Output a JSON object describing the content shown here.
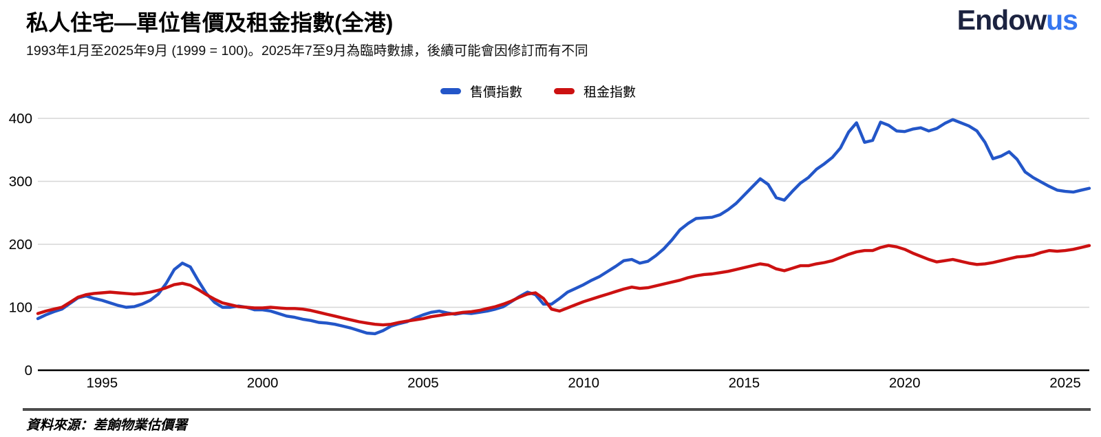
{
  "header": {
    "title": "私人住宅—單位售價及租金指數(全港)",
    "subtitle": "1993年1月至2025年9月 (1999 = 100)。2025年7至9月為臨時數據，後續可能會因修訂而有不同",
    "logo": {
      "part1": "Endow",
      "part2": "us"
    }
  },
  "colors": {
    "price_line": "#2356c8",
    "rent_line": "#cc1111",
    "logo_navy": "#1c2340",
    "logo_blue": "#3576f0",
    "gridline": "#d6d6d6",
    "baseline": "#000000",
    "footer_rule": "#4d4d4d"
  },
  "legend": [
    {
      "label": "售價指數",
      "color": "#2356c8"
    },
    {
      "label": "租金指數",
      "color": "#cc1111"
    }
  ],
  "footer": {
    "source_label": "資料來源：差餉物業估價署"
  },
  "chart_data": {
    "type": "line",
    "title": "私人住宅—單位售價及租金指數(全港)",
    "subtitle": "1993年1月至2025年9月 (1999 = 100)。2025年7至9月為臨時數據，後續可能會因修訂而有不同",
    "xlabel": "",
    "ylabel": "",
    "xlim": [
      1993.0,
      2025.75
    ],
    "ylim": [
      0,
      400
    ],
    "x_ticks": [
      1995,
      2000,
      2005,
      2010,
      2015,
      2020,
      2025
    ],
    "y_ticks": [
      0,
      100,
      200,
      300,
      400
    ],
    "grid": "horizontal",
    "legend_position": "top-center",
    "x_start": 1993.0,
    "x_step": 0.25,
    "series": [
      {
        "name": "售價指數",
        "color": "#2356c8",
        "values": [
          82,
          88,
          93,
          97,
          106,
          115,
          118,
          114,
          111,
          107,
          103,
          100,
          101,
          105,
          111,
          121,
          138,
          160,
          170,
          164,
          142,
          122,
          108,
          100,
          100,
          102,
          100,
          96,
          96,
          94,
          90,
          86,
          84,
          81,
          79,
          76,
          75,
          73,
          70,
          67,
          63,
          59,
          58,
          63,
          70,
          74,
          77,
          83,
          88,
          92,
          94,
          91,
          89,
          91,
          90,
          92,
          94,
          97,
          101,
          109,
          117,
          124,
          120,
          105,
          105,
          114,
          124,
          130,
          136,
          143,
          149,
          157,
          165,
          174,
          176,
          170,
          173,
          182,
          193,
          207,
          223,
          233,
          241,
          242,
          243,
          247,
          255,
          265,
          278,
          291,
          304,
          295,
          274,
          270,
          284,
          297,
          306,
          319,
          328,
          338,
          353,
          378,
          393,
          362,
          365,
          394,
          389,
          380,
          379,
          383,
          385,
          380,
          384,
          392,
          398,
          393,
          388,
          380,
          362,
          336,
          340,
          347,
          335,
          315,
          306,
          299,
          292,
          286,
          284,
          283,
          286,
          289
        ]
      },
      {
        "name": "租金指數",
        "color": "#cc1111",
        "values": [
          90,
          94,
          97,
          100,
          108,
          116,
          120,
          122,
          123,
          124,
          123,
          122,
          121,
          122,
          124,
          127,
          131,
          136,
          138,
          135,
          128,
          120,
          113,
          107,
          104,
          101,
          100,
          99,
          99,
          100,
          99,
          98,
          98,
          97,
          95,
          92,
          89,
          86,
          83,
          80,
          77,
          75,
          73,
          72,
          73,
          76,
          78,
          80,
          82,
          85,
          87,
          89,
          90,
          92,
          93,
          95,
          98,
          101,
          105,
          110,
          116,
          121,
          123,
          114,
          97,
          94,
          99,
          104,
          109,
          113,
          117,
          121,
          125,
          129,
          132,
          130,
          131,
          134,
          137,
          140,
          143,
          147,
          150,
          152,
          153,
          155,
          157,
          160,
          163,
          166,
          169,
          167,
          161,
          158,
          162,
          166,
          166,
          169,
          171,
          174,
          179,
          184,
          188,
          190,
          190,
          195,
          198,
          196,
          192,
          186,
          181,
          176,
          172,
          174,
          176,
          173,
          170,
          168,
          169,
          171,
          174,
          177,
          180,
          181,
          183,
          187,
          190,
          189,
          190,
          192,
          195,
          198
        ]
      }
    ]
  }
}
